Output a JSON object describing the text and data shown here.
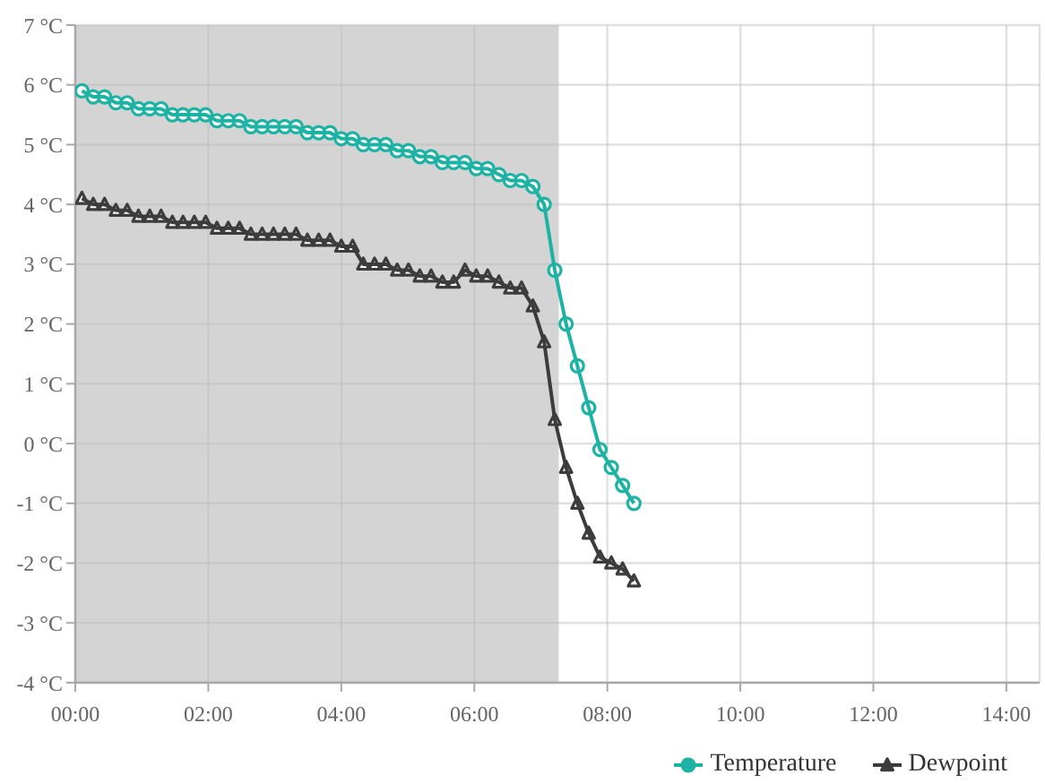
{
  "chart_data": {
    "type": "line",
    "x": [
      0.1,
      0.27,
      0.44,
      0.61,
      0.78,
      0.95,
      1.12,
      1.29,
      1.46,
      1.62,
      1.79,
      1.96,
      2.13,
      2.3,
      2.47,
      2.64,
      2.81,
      2.98,
      3.15,
      3.32,
      3.49,
      3.66,
      3.83,
      4.0,
      4.17,
      4.33,
      4.5,
      4.67,
      4.84,
      5.01,
      5.18,
      5.35,
      5.52,
      5.69,
      5.86,
      6.03,
      6.2,
      6.37,
      6.54,
      6.71,
      6.88,
      7.05,
      7.21,
      7.38,
      7.55,
      7.72,
      7.89,
      8.06,
      8.23,
      8.4
    ],
    "series": [
      {
        "name": "Temperature",
        "color": "#1cb3a5",
        "marker": "circle",
        "values": [
          5.9,
          5.8,
          5.8,
          5.7,
          5.7,
          5.6,
          5.6,
          5.6,
          5.5,
          5.5,
          5.5,
          5.5,
          5.4,
          5.4,
          5.4,
          5.3,
          5.3,
          5.3,
          5.3,
          5.3,
          5.2,
          5.2,
          5.2,
          5.1,
          5.1,
          5.0,
          5.0,
          5.0,
          4.9,
          4.9,
          4.8,
          4.8,
          4.7,
          4.7,
          4.7,
          4.6,
          4.6,
          4.5,
          4.4,
          4.4,
          4.3,
          4.0,
          2.9,
          2.0,
          1.3,
          0.6,
          -0.1,
          -0.4,
          -0.7,
          -1.0
        ]
      },
      {
        "name": "Dewpoint",
        "color": "#3c3c3c",
        "marker": "triangle",
        "values": [
          4.1,
          4.0,
          4.0,
          3.9,
          3.9,
          3.8,
          3.8,
          3.8,
          3.7,
          3.7,
          3.7,
          3.7,
          3.6,
          3.6,
          3.6,
          3.5,
          3.5,
          3.5,
          3.5,
          3.5,
          3.4,
          3.4,
          3.4,
          3.3,
          3.3,
          3.0,
          3.0,
          3.0,
          2.9,
          2.9,
          2.8,
          2.8,
          2.7,
          2.7,
          2.9,
          2.8,
          2.8,
          2.7,
          2.6,
          2.6,
          2.3,
          1.7,
          0.4,
          -0.4,
          -1.0,
          -1.5,
          -1.9,
          -2.0,
          -2.1,
          -2.3
        ]
      }
    ],
    "xlim": [
      0,
      14.5
    ],
    "xticks": [
      {
        "value": 0,
        "label": "00:00"
      },
      {
        "value": 2,
        "label": "02:00"
      },
      {
        "value": 4,
        "label": "04:00"
      },
      {
        "value": 6,
        "label": "06:00"
      },
      {
        "value": 8,
        "label": "08:00"
      },
      {
        "value": 10,
        "label": "10:00"
      },
      {
        "value": 12,
        "label": "12:00"
      },
      {
        "value": 14,
        "label": "14:00"
      }
    ],
    "ylim": [
      -4,
      7
    ],
    "yticks": [
      {
        "value": -4,
        "label": "-4 °C"
      },
      {
        "value": -3,
        "label": "-3 °C"
      },
      {
        "value": -2,
        "label": "-2 °C"
      },
      {
        "value": -1,
        "label": "-1 °C"
      },
      {
        "value": 0,
        "label": "0 °C"
      },
      {
        "value": 1,
        "label": "1 °C"
      },
      {
        "value": 2,
        "label": "2 °C"
      },
      {
        "value": 3,
        "label": "3 °C"
      },
      {
        "value": 4,
        "label": "4 °C"
      },
      {
        "value": 5,
        "label": "5 °C"
      },
      {
        "value": 6,
        "label": "6 °C"
      },
      {
        "value": 7,
        "label": "7 °C"
      }
    ],
    "bands": [
      {
        "axis": "x",
        "from": 0,
        "to": 7.27,
        "color": "#d4d4d4"
      }
    ],
    "grid": true,
    "legend": "bottom right",
    "line_style": "solid"
  }
}
